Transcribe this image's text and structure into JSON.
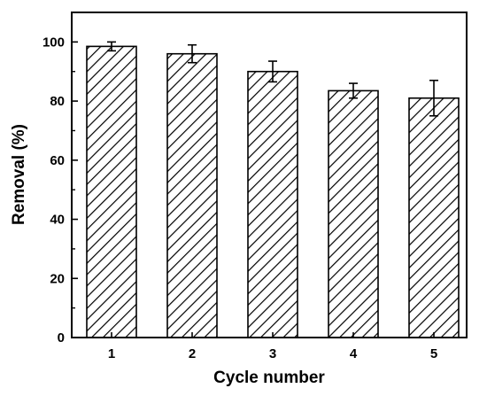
{
  "chart_data": {
    "type": "bar",
    "categories": [
      "1",
      "2",
      "3",
      "4",
      "5"
    ],
    "values": [
      98.5,
      96,
      90,
      83.5,
      81
    ],
    "errors": [
      1.5,
      3,
      3.5,
      2.5,
      6
    ],
    "xlabel": "Cycle number",
    "ylabel": "Removal (%)",
    "ylim": [
      0,
      110
    ],
    "yticks": [
      0,
      20,
      40,
      60,
      80,
      100
    ],
    "bar_fill": "hatched",
    "colors": {
      "bar_stroke": "#000000",
      "hatch": "#000000",
      "background": "#ffffff"
    }
  }
}
